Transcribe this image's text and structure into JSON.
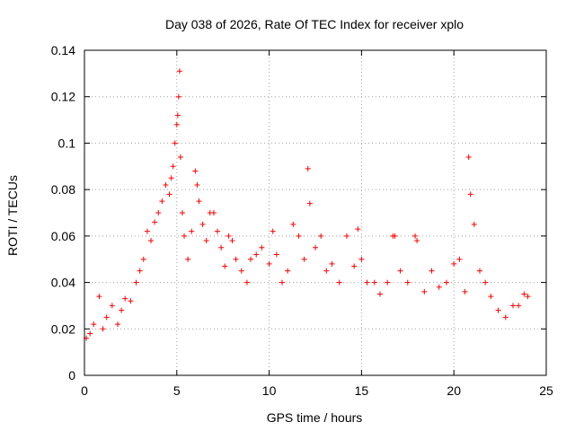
{
  "chart_data": {
    "type": "scatter",
    "title": "Day 038 of 2026, Rate Of TEC Index for receiver xplo",
    "xlabel": "GPS time / hours",
    "ylabel": "ROTI / TECUs",
    "xlim": [
      0,
      25
    ],
    "ylim": [
      0,
      0.14
    ],
    "xticks": [
      0,
      5,
      10,
      15,
      20,
      25
    ],
    "xtick_labels": [
      "0",
      "5",
      "10",
      "15",
      "20",
      "25"
    ],
    "yticks": [
      0,
      0.02,
      0.04,
      0.06,
      0.08,
      0.1,
      0.12,
      0.14
    ],
    "ytick_labels": [
      "0",
      "0.02",
      "0.04",
      "0.06",
      "0.08",
      "0.1",
      "0.12",
      "0.14"
    ],
    "grid": true,
    "marker": "+",
    "colors": {
      "series": "#ff0000",
      "grid": "#a0a0a0",
      "frame": "#000000"
    },
    "series": [
      {
        "name": "ROTI",
        "x": [
          0.1,
          0.3,
          0.5,
          0.8,
          1.0,
          1.2,
          1.5,
          1.8,
          2.0,
          2.2,
          2.5,
          2.8,
          3.0,
          3.2,
          3.4,
          3.6,
          3.8,
          4.0,
          4.2,
          4.4,
          4.6,
          4.7,
          4.8,
          4.9,
          5.0,
          5.05,
          5.1,
          5.15,
          5.2,
          5.3,
          5.4,
          5.6,
          5.8,
          6.0,
          6.1,
          6.2,
          6.4,
          6.6,
          6.8,
          7.0,
          7.2,
          7.4,
          7.6,
          7.8,
          8.0,
          8.2,
          8.5,
          8.8,
          9.0,
          9.3,
          9.6,
          10.0,
          10.2,
          10.4,
          10.7,
          11.0,
          11.3,
          11.6,
          11.9,
          12.1,
          12.2,
          12.5,
          12.8,
          13.1,
          13.4,
          13.8,
          14.2,
          14.6,
          14.8,
          15.0,
          15.3,
          15.7,
          16.0,
          16.4,
          16.7,
          16.8,
          17.1,
          17.5,
          17.9,
          18.0,
          18.4,
          18.8,
          19.2,
          19.6,
          20.0,
          20.3,
          20.6,
          20.8,
          20.9,
          21.1,
          21.4,
          21.7,
          22.0,
          22.4,
          22.8,
          23.2,
          23.5,
          23.8,
          24.0
        ],
        "y": [
          0.016,
          0.018,
          0.022,
          0.034,
          0.02,
          0.025,
          0.03,
          0.022,
          0.028,
          0.033,
          0.032,
          0.04,
          0.045,
          0.05,
          0.062,
          0.058,
          0.066,
          0.07,
          0.075,
          0.082,
          0.078,
          0.085,
          0.09,
          0.1,
          0.108,
          0.112,
          0.12,
          0.131,
          0.094,
          0.07,
          0.06,
          0.05,
          0.062,
          0.088,
          0.082,
          0.075,
          0.065,
          0.058,
          0.07,
          0.07,
          0.062,
          0.055,
          0.047,
          0.06,
          0.058,
          0.05,
          0.045,
          0.04,
          0.05,
          0.052,
          0.055,
          0.048,
          0.062,
          0.052,
          0.04,
          0.045,
          0.065,
          0.06,
          0.05,
          0.089,
          0.074,
          0.055,
          0.06,
          0.045,
          0.048,
          0.04,
          0.06,
          0.047,
          0.063,
          0.05,
          0.04,
          0.04,
          0.035,
          0.04,
          0.06,
          0.06,
          0.045,
          0.04,
          0.06,
          0.058,
          0.036,
          0.045,
          0.038,
          0.04,
          0.048,
          0.05,
          0.036,
          0.094,
          0.078,
          0.065,
          0.045,
          0.04,
          0.034,
          0.028,
          0.025,
          0.03,
          0.03,
          0.035,
          0.034
        ]
      }
    ]
  }
}
